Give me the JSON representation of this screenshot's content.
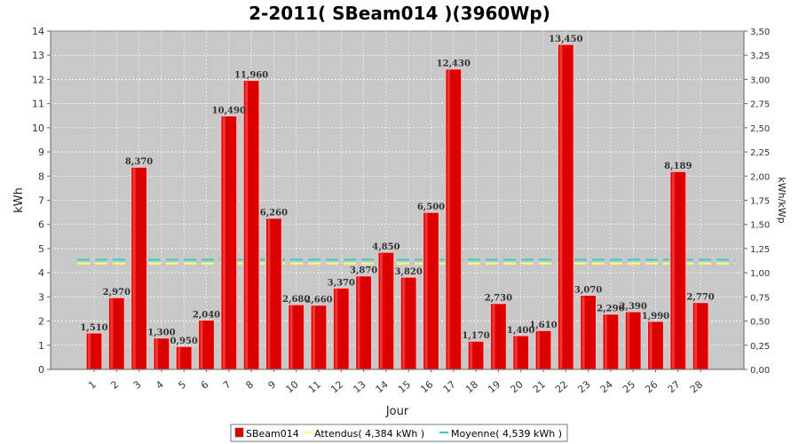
{
  "chart_data": {
    "type": "bar",
    "title": "2-2011( SBeam014 )(3960Wp)",
    "xlabel": "Jour",
    "ylabel": "kWh",
    "ylabel_right": "kWh/kWp",
    "ylim": [
      0,
      14
    ],
    "ylim_right": [
      0,
      3.5
    ],
    "yticks": [
      "0",
      "1",
      "2",
      "3",
      "4",
      "5",
      "6",
      "7",
      "8",
      "9",
      "10",
      "11",
      "12",
      "13",
      "14"
    ],
    "yticks_right": [
      "0,00",
      "0,25",
      "0,50",
      "0,75",
      "1,00",
      "1,25",
      "1,50",
      "1,75",
      "2,00",
      "2,25",
      "2,50",
      "2,75",
      "3,00",
      "3,25",
      "3,50"
    ],
    "categories": [
      "1",
      "2",
      "3",
      "4",
      "5",
      "6",
      "7",
      "8",
      "9",
      "10",
      "11",
      "12",
      "13",
      "14",
      "15",
      "16",
      "17",
      "18",
      "19",
      "20",
      "21",
      "22",
      "23",
      "24",
      "25",
      "26",
      "27",
      "28"
    ],
    "values": [
      1.51,
      2.97,
      8.37,
      1.3,
      0.95,
      2.04,
      10.49,
      11.96,
      6.26,
      2.68,
      2.66,
      3.37,
      3.87,
      4.85,
      3.82,
      6.5,
      12.43,
      1.17,
      2.73,
      1.4,
      1.61,
      13.45,
      3.07,
      2.29,
      2.39,
      1.99,
      8.189,
      2.77
    ],
    "value_labels": [
      "1,510",
      "2,970",
      "8,370",
      "1,300",
      "0,950",
      "2,040",
      "10,490",
      "11,960",
      "6,260",
      "2,680",
      "2,660",
      "3,370",
      "3,870",
      "4,850",
      "3,820",
      "6,500",
      "12,430",
      "1,170",
      "2,730",
      "1,400",
      "1,610",
      "13,450",
      "3,070",
      "2,290",
      "2,390",
      "1,990",
      "8,189",
      "2,770"
    ],
    "lines": [
      {
        "name": "Attendus( 4,384 kWh )",
        "value": 4.384,
        "color": "#ffff66"
      },
      {
        "name": "Moyenne( 4,539 kWh )",
        "value": 4.539,
        "color": "#33cccc"
      }
    ],
    "series_name": "SBeam014",
    "bar_color": "#dd0000",
    "legend_position": "bottom",
    "grid": true
  }
}
